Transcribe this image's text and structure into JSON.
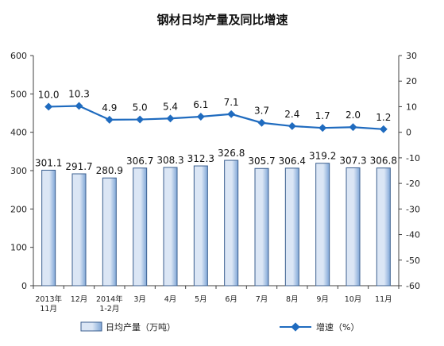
{
  "chart_data": {
    "type": "bar",
    "title": "钢材日均产量及同比增速",
    "categories": [
      [
        "2013年",
        "11月"
      ],
      [
        "12月"
      ],
      [
        "2014年",
        "1-2月"
      ],
      [
        "3月"
      ],
      [
        "4月"
      ],
      [
        "5月"
      ],
      [
        "6月"
      ],
      [
        "7月"
      ],
      [
        "8月"
      ],
      [
        "9月"
      ],
      [
        "10月"
      ],
      [
        "11月"
      ]
    ],
    "series": [
      {
        "name": "日均产量（万吨）",
        "type": "bar",
        "axis": "left",
        "values": [
          301.1,
          291.7,
          280.9,
          306.7,
          308.3,
          312.3,
          326.8,
          305.7,
          306.4,
          319.2,
          307.3,
          306.8
        ],
        "labels": [
          "301.1",
          "291.7",
          "280.9",
          "306.7",
          "308.3",
          "312.3",
          "326.8",
          "305.7",
          "306.4",
          "319.2",
          "307.3",
          "306.8"
        ]
      },
      {
        "name": "增速（%）",
        "type": "line",
        "axis": "right",
        "values": [
          10.0,
          10.3,
          4.9,
          5.0,
          5.4,
          6.1,
          7.1,
          3.7,
          2.4,
          1.7,
          2.0,
          1.2
        ],
        "labels": [
          "10.0",
          "10.3",
          "4.9",
          "5.0",
          "5.4",
          "6.1",
          "7.1",
          "3.7",
          "2.4",
          "1.7",
          "2.0",
          "1.2"
        ]
      }
    ],
    "y_left": {
      "min": 0,
      "max": 600,
      "step": 100,
      "ticks": [
        "0",
        "100",
        "200",
        "300",
        "400",
        "500",
        "600"
      ]
    },
    "y_right": {
      "min": -60,
      "max": 30,
      "step": 10,
      "ticks": [
        "-60",
        "-50",
        "-40",
        "-30",
        "-20",
        "-10",
        "0",
        "10",
        "20",
        "30"
      ]
    },
    "grid": false,
    "legend": "bottom",
    "colors": {
      "bar_fill_light": "#dbe6f5",
      "bar_fill_dark": "#7fa6d6",
      "bar_stroke": "#3b5f8f",
      "line": "#1f6bbf",
      "axis": "#404040"
    }
  }
}
